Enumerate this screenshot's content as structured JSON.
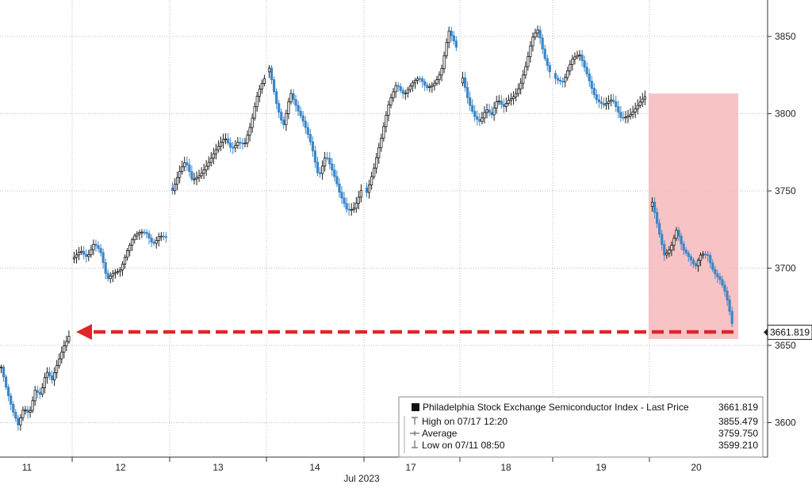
{
  "chart_data": {
    "type": "candlestick",
    "title": "",
    "xlabel": "Jul 2023",
    "ylabel": "",
    "ylim": [
      3594,
      3875
    ],
    "y_ticks": [
      3600,
      3650,
      3700,
      3750,
      3800,
      3850
    ],
    "day_labels": [
      "11",
      "12",
      "13",
      "14",
      "17",
      "18",
      "19",
      "20"
    ],
    "grid": true,
    "last_price": "3661.819",
    "accent_colors": {
      "up": "#1a1a1a",
      "down": "#3b86c8",
      "highlight": "#f6b8bb",
      "arrow": "#e0242b"
    },
    "series": [
      {
        "session": "11",
        "path": [
          3636,
          3618,
          3605,
          3598,
          3612,
          3609,
          3622,
          3616,
          3630,
          3626,
          3640,
          3652,
          3658
        ]
      },
      {
        "session": "12",
        "path": [
          3706,
          3714,
          3710,
          3716,
          3708,
          3690,
          3698,
          3702,
          3712,
          3718,
          3720,
          3722,
          3718,
          3724,
          3720
        ]
      },
      {
        "session": "13",
        "path": [
          3752,
          3760,
          3766,
          3756,
          3762,
          3768,
          3772,
          3776,
          3782,
          3778,
          3785,
          3782,
          3792,
          3810,
          3822
        ]
      },
      {
        "session": "14",
        "path": [
          3827,
          3808,
          3795,
          3815,
          3800,
          3790,
          3780,
          3762,
          3775,
          3760,
          3745,
          3738,
          3742,
          3752
        ]
      },
      {
        "session": "17",
        "path": [
          3752,
          3765,
          3782,
          3806,
          3822,
          3815,
          3818,
          3820,
          3816,
          3822,
          3830,
          3852,
          3840
        ]
      },
      {
        "session": "18",
        "path": [
          3820,
          3806,
          3800,
          3798,
          3805,
          3798,
          3806,
          3802,
          3810,
          3815,
          3822,
          3832,
          3846,
          3852,
          3838,
          3830
        ]
      },
      {
        "session": "19",
        "path": [
          3826,
          3822,
          3832,
          3836,
          3826,
          3812,
          3804,
          3806,
          3798,
          3802,
          3805,
          3808
        ]
      },
      {
        "session": "20",
        "path": [
          3740,
          3722,
          3708,
          3716,
          3728,
          3712,
          3704,
          3698,
          3710,
          3712,
          3700,
          3692,
          3680,
          3662
        ]
      }
    ],
    "legend": {
      "placement": "bottom-right",
      "title": "Philadelphia Stock Exchange Semiconductor Index - Last Price",
      "title_value": "3661.819",
      "rows": [
        {
          "label": "High on 07/17 12:20",
          "value": "3855.479",
          "marker": "high"
        },
        {
          "label": "Average",
          "value": "3759.750",
          "marker": "average"
        },
        {
          "label": "Low on 07/11 08:50",
          "value": "3599.210",
          "marker": "low"
        }
      ]
    }
  }
}
